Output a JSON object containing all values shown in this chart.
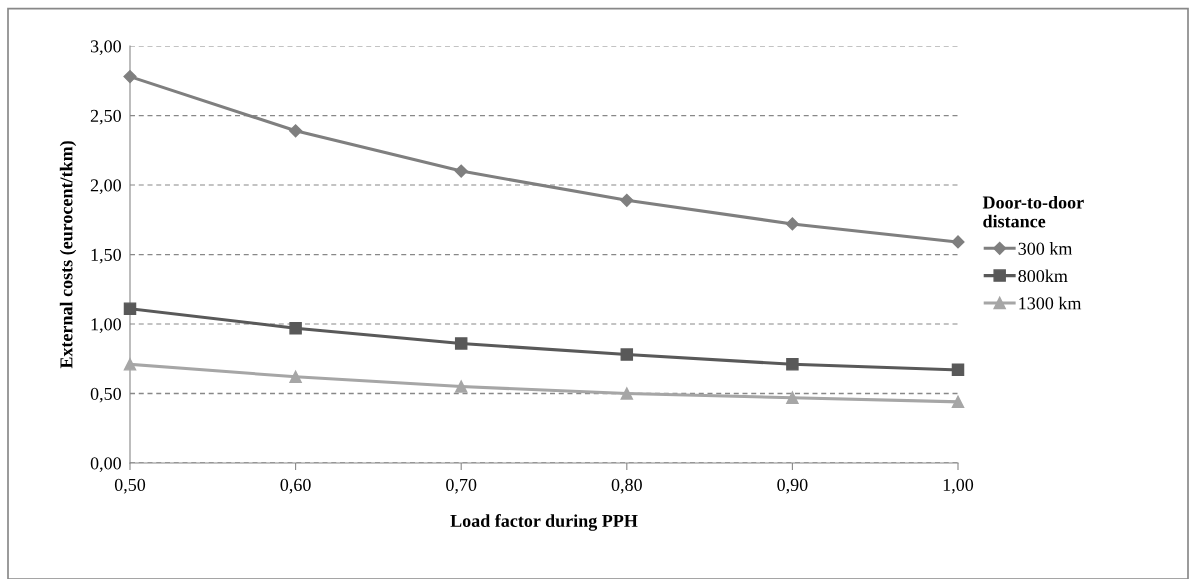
{
  "chart_data": {
    "type": "line",
    "xlabel": "Load factor during PPH",
    "ylabel": "External costs (eurocent/tkm)",
    "legend_title": "Door-to-door\ndistance",
    "x": [
      0.5,
      0.6,
      0.7,
      0.8,
      0.9,
      1.0
    ],
    "series": [
      {
        "name": "300 km",
        "color": "#7f7f7f",
        "marker": "diamond",
        "values": [
          2.78,
          2.39,
          2.1,
          1.89,
          1.72,
          1.59
        ]
      },
      {
        "name": "800km",
        "color": "#595959",
        "marker": "square",
        "values": [
          1.11,
          0.97,
          0.86,
          0.78,
          0.71,
          0.67
        ]
      },
      {
        "name": "1300 km",
        "color": "#a6a6a6",
        "marker": "triangle",
        "values": [
          0.71,
          0.62,
          0.55,
          0.5,
          0.47,
          0.44
        ]
      }
    ],
    "xlim": [
      0.5,
      1.0
    ],
    "xticks": [
      {
        "value": 0.5,
        "label": "0,50"
      },
      {
        "value": 0.6,
        "label": "0,60"
      },
      {
        "value": 0.7,
        "label": "0,70"
      },
      {
        "value": 0.8,
        "label": "0,80"
      },
      {
        "value": 0.9,
        "label": "0,90"
      },
      {
        "value": 1.0,
        "label": "1,00"
      }
    ],
    "ylim": [
      0,
      3
    ],
    "yticks": [
      {
        "value": 0,
        "label": "0,00"
      },
      {
        "value": 0.5,
        "label": "0,50"
      },
      {
        "value": 1.0,
        "label": "1,00"
      },
      {
        "value": 1.5,
        "label": "1,50"
      },
      {
        "value": 2.0,
        "label": "2,00"
      },
      {
        "value": 2.5,
        "label": "2,50"
      },
      {
        "value": 3.0,
        "label": "3,00"
      }
    ],
    "grid": "y",
    "legend": "right",
    "line_style": "solid"
  }
}
